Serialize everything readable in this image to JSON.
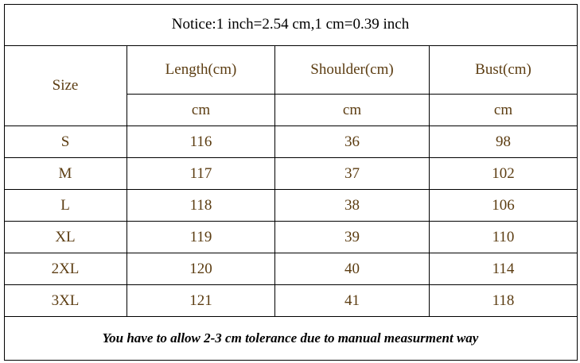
{
  "notice": "Notice:1 inch=2.54 cm,1 cm=0.39 inch",
  "table": {
    "size_header": "Size",
    "columns": [
      "Length(cm)",
      "Shoulder(cm)",
      "Bust(cm)"
    ],
    "units": [
      "cm",
      "cm",
      "cm"
    ],
    "rows": [
      [
        "S",
        116,
        36,
        98
      ],
      [
        "M",
        117,
        37,
        102
      ],
      [
        "L",
        118,
        38,
        106
      ],
      [
        "XL",
        119,
        39,
        110
      ],
      [
        "2XL",
        120,
        40,
        114
      ],
      [
        "3XL",
        121,
        41,
        118
      ]
    ]
  },
  "footer": "You have to allow 2-3 cm tolerance due to manual measurment way"
}
